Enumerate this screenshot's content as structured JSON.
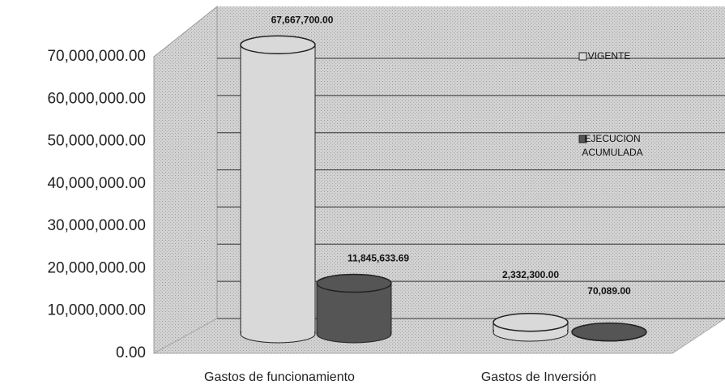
{
  "chart_data": {
    "type": "bar",
    "categories": [
      "Gastos de funcionamiento",
      "Gastos de  Inversión"
    ],
    "series": [
      {
        "name": "VIGENTE",
        "color": "#d9d9d9",
        "values": [
          67667700,
          2332300
        ],
        "value_labels": [
          "67,667,700.00",
          "2,332,300.00"
        ]
      },
      {
        "name": "EJECUCION ACUMULADA",
        "color": "#555555",
        "values": [
          11845633.69,
          70089
        ],
        "value_labels": [
          "11,845,633.69",
          "70,089.00"
        ]
      }
    ],
    "ylim": [
      0,
      70000000
    ],
    "yticks": [
      {
        "value": 0,
        "label": "0.00"
      },
      {
        "value": 10000000,
        "label": "10,000,000.00"
      },
      {
        "value": 20000000,
        "label": "20,000,000.00"
      },
      {
        "value": 30000000,
        "label": "30,000,000.00"
      },
      {
        "value": 40000000,
        "label": "40,000,000.00"
      },
      {
        "value": 50000000,
        "label": "50,000,000.00"
      },
      {
        "value": 60000000,
        "label": "60,000,000.00"
      },
      {
        "value": 70000000,
        "label": "70,000,000.00"
      }
    ],
    "grid": true
  }
}
